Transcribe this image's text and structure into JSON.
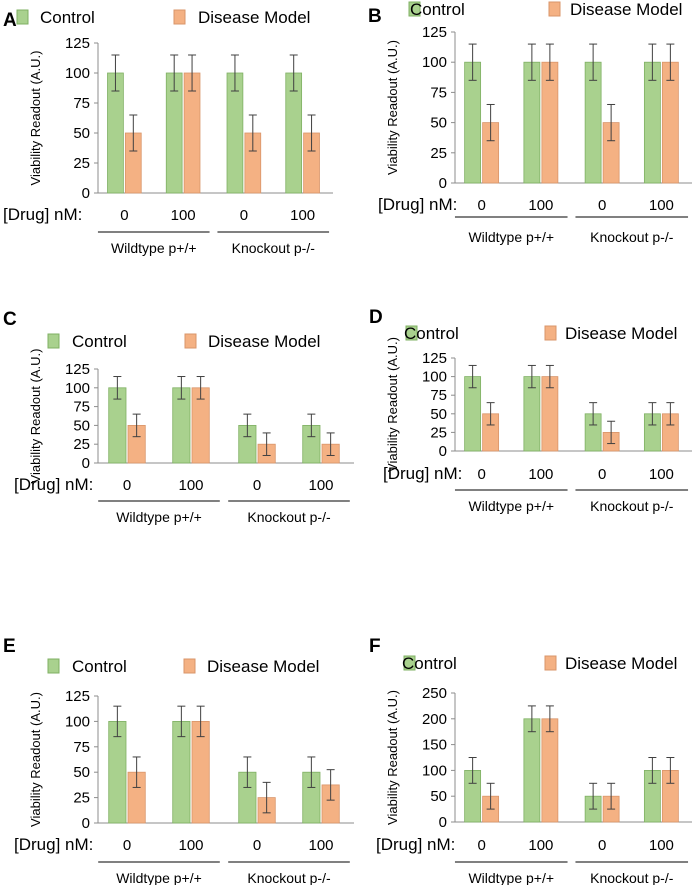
{
  "colors": {
    "control_fill": "#A9D18E",
    "control_edge": "#7FB063",
    "disease_fill": "#F4B183",
    "disease_edge": "#D9956A",
    "axis": "#8C8C8C",
    "error_bar": "#404040"
  },
  "shared": {
    "drug_label": "[Drug] nM:",
    "ylabel": "Viability Readout (A.U.)",
    "legend": [
      "Control",
      "Disease Model"
    ],
    "group_labels": [
      "Wildtype p+/+",
      "Knockout p-/-"
    ]
  },
  "chart_data": [
    {
      "panel": "A",
      "type": "bar",
      "categories": [
        "0",
        "100",
        "0",
        "100"
      ],
      "groups": [
        "Wildtype p+/+",
        "Knockout p-/-"
      ],
      "ylabel": "Viability Readout (A.U.)",
      "ylim": [
        0,
        125
      ],
      "yticks": [
        "0",
        "25",
        "50",
        "75",
        "100",
        "125"
      ],
      "series": [
        {
          "name": "Control",
          "values": [
            100,
            100,
            100,
            100
          ],
          "errors": [
            15,
            15,
            15,
            15
          ]
        },
        {
          "name": "Disease Model",
          "values": [
            50,
            100,
            50,
            50
          ],
          "errors": [
            15,
            15,
            15,
            15
          ]
        }
      ]
    },
    {
      "panel": "B",
      "type": "bar",
      "categories": [
        "0",
        "100",
        "0",
        "100"
      ],
      "groups": [
        "Wildtype p+/+",
        "Knockout p-/-"
      ],
      "ylabel": "Viability Readout (A.U.)",
      "ylim": [
        0,
        125
      ],
      "yticks": [
        "0",
        "25",
        "50",
        "75",
        "100",
        "125"
      ],
      "series": [
        {
          "name": "Control",
          "values": [
            100,
            100,
            100,
            100
          ],
          "errors": [
            15,
            15,
            15,
            15
          ]
        },
        {
          "name": "Disease Model",
          "values": [
            50,
            100,
            50,
            100
          ],
          "errors": [
            15,
            15,
            15,
            15
          ]
        }
      ]
    },
    {
      "panel": "C",
      "type": "bar",
      "categories": [
        "0",
        "100",
        "0",
        "100"
      ],
      "groups": [
        "Wildtype p+/+",
        "Knockout p-/-"
      ],
      "ylabel": "Viability Readout (A.U.)",
      "ylim": [
        0,
        125
      ],
      "yticks": [
        "0",
        "25",
        "50",
        "75",
        "100",
        "125"
      ],
      "series": [
        {
          "name": "Control",
          "values": [
            100,
            100,
            50,
            50
          ],
          "errors": [
            15,
            15,
            15,
            15
          ]
        },
        {
          "name": "Disease Model",
          "values": [
            50,
            100,
            25,
            25
          ],
          "errors": [
            15,
            15,
            15,
            15
          ]
        }
      ]
    },
    {
      "panel": "D",
      "type": "bar",
      "categories": [
        "0",
        "100",
        "0",
        "100"
      ],
      "groups": [
        "Wildtype p+/+",
        "Knockout p-/-"
      ],
      "ylabel": "Viability Readout (A.U.)",
      "ylim": [
        0,
        125
      ],
      "yticks": [
        "0",
        "25",
        "50",
        "75",
        "100",
        "125"
      ],
      "series": [
        {
          "name": "Control",
          "values": [
            100,
            100,
            50,
            50
          ],
          "errors": [
            15,
            15,
            15,
            15
          ]
        },
        {
          "name": "Disease Model",
          "values": [
            50,
            100,
            25,
            50
          ],
          "errors": [
            15,
            15,
            15,
            15
          ]
        }
      ]
    },
    {
      "panel": "E",
      "type": "bar",
      "categories": [
        "0",
        "100",
        "0",
        "100"
      ],
      "groups": [
        "Wildtype p+/+",
        "Knockout p-/-"
      ],
      "ylabel": "Viability Readout (A.U.)",
      "ylim": [
        0,
        125
      ],
      "yticks": [
        "0",
        "25",
        "50",
        "75",
        "100",
        "125"
      ],
      "series": [
        {
          "name": "Control",
          "values": [
            100,
            100,
            50,
            50
          ],
          "errors": [
            15,
            15,
            15,
            15
          ]
        },
        {
          "name": "Disease Model",
          "values": [
            50,
            100,
            25,
            37.5
          ],
          "errors": [
            15,
            15,
            15,
            15
          ]
        }
      ]
    },
    {
      "panel": "F",
      "type": "bar",
      "categories": [
        "0",
        "100",
        "0",
        "100"
      ],
      "groups": [
        "Wildtype p+/+",
        "Knockout p-/-"
      ],
      "ylabel": "Viability Readout (A.U.)",
      "ylim": [
        0,
        250
      ],
      "yticks": [
        "0",
        "50",
        "100",
        "150",
        "200",
        "250"
      ],
      "series": [
        {
          "name": "Control",
          "values": [
            100,
            200,
            50,
            100
          ],
          "errors": [
            25,
            25,
            25,
            25
          ]
        },
        {
          "name": "Disease Model",
          "values": [
            50,
            200,
            50,
            100
          ],
          "errors": [
            25,
            25,
            25,
            25
          ]
        }
      ]
    }
  ]
}
